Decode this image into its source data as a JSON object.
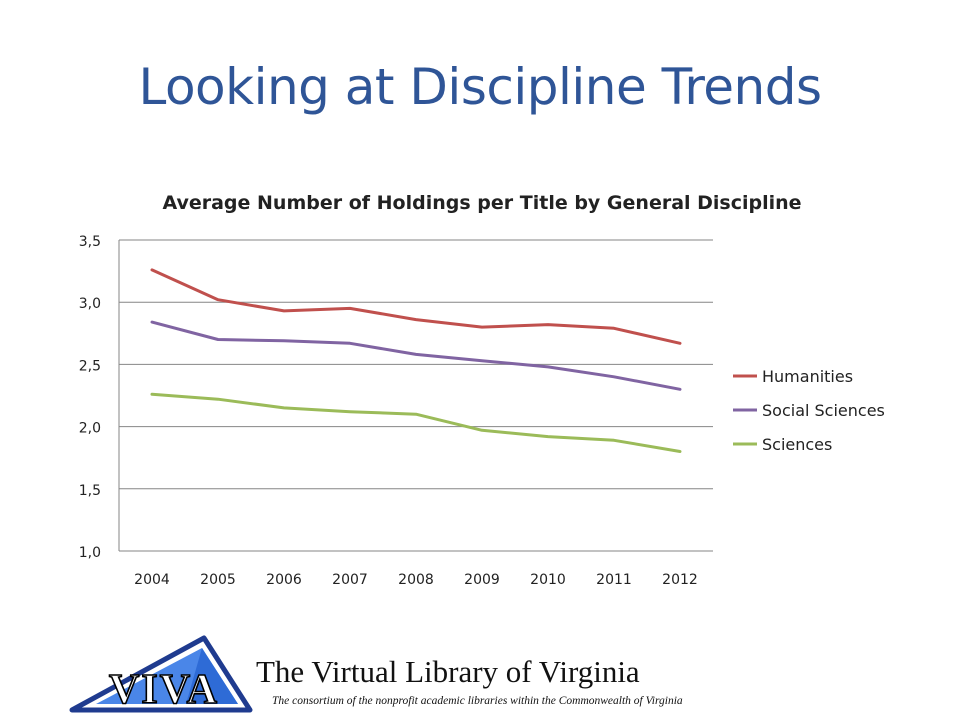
{
  "slide": {
    "title": "Looking at Discipline Trends"
  },
  "chart_data": {
    "type": "line",
    "title": "Average Number of Holdings per Title by General Discipline",
    "xlabel": "",
    "ylabel": "",
    "ylim": [
      1.0,
      3.5
    ],
    "y_ticks": [
      1.0,
      1.5,
      2.0,
      2.5,
      3.0,
      3.5
    ],
    "y_tick_labels": [
      "1,0",
      "1,5",
      "2,0",
      "2,5",
      "3,0",
      "3,5"
    ],
    "categories": [
      "2004",
      "2005",
      "2006",
      "2007",
      "2008",
      "2009",
      "2010",
      "2011",
      "2012"
    ],
    "grid": true,
    "legend_position": "right",
    "series": [
      {
        "name": "Humanities",
        "color": "#c0504d",
        "values": [
          3.26,
          3.02,
          2.93,
          2.95,
          2.86,
          2.8,
          2.82,
          2.79,
          2.67
        ]
      },
      {
        "name": "Social Sciences",
        "color": "#8064a2",
        "values": [
          2.84,
          2.7,
          2.69,
          2.67,
          2.58,
          2.53,
          2.48,
          2.4,
          2.3
        ]
      },
      {
        "name": "Sciences",
        "color": "#9bbb59",
        "values": [
          2.26,
          2.22,
          2.15,
          2.12,
          2.1,
          1.97,
          1.92,
          1.89,
          1.8
        ]
      }
    ]
  },
  "footer": {
    "logo_text": "VIVA",
    "name": "The Virtual Library of Virginia",
    "tagline": "The consortium of the nonprofit academic libraries within the Commonwealth of Virginia"
  }
}
